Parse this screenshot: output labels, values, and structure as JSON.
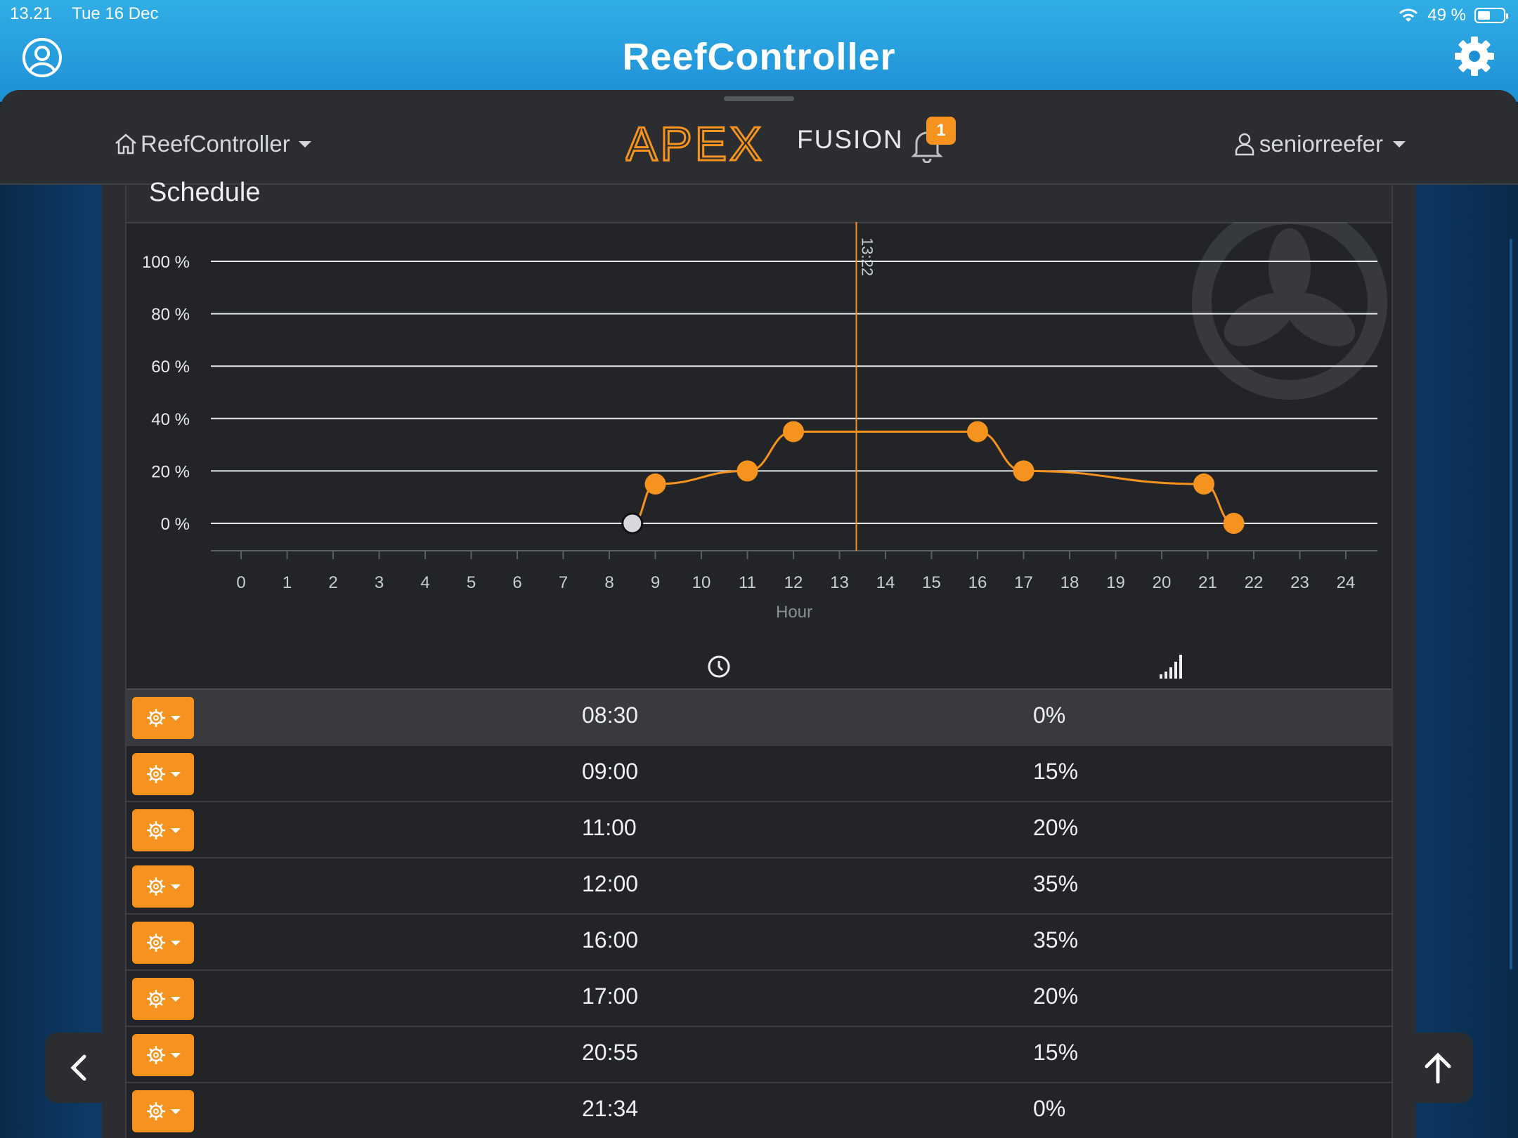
{
  "status_bar": {
    "time": "13.21",
    "date": "Tue 16 Dec",
    "battery": "49 %"
  },
  "app": {
    "title": "ReefController"
  },
  "navbar": {
    "controller": "ReefController",
    "brand_apex": "APEX",
    "brand_fusion": "FUSION",
    "notifications": "1",
    "user": "seniorreefer"
  },
  "card": {
    "title": "Schedule"
  },
  "colors": {
    "accent": "#f6921e",
    "background": "#222428",
    "panel": "#2b2d31",
    "ios_blue": "#1e8fd6"
  },
  "chart_data": {
    "type": "line",
    "x": [
      8.5,
      9.0,
      11.0,
      12.0,
      16.0,
      17.0,
      20.9167,
      21.5667
    ],
    "y": [
      0,
      15,
      20,
      35,
      35,
      20,
      15,
      0
    ],
    "xlabel": "Hour",
    "ylabel": "",
    "xlim": [
      0,
      24
    ],
    "ylim": [
      0,
      100
    ],
    "x_ticks": [
      "0",
      "1",
      "2",
      "3",
      "4",
      "5",
      "6",
      "7",
      "8",
      "9",
      "10",
      "11",
      "12",
      "13",
      "14",
      "15",
      "16",
      "17",
      "18",
      "19",
      "20",
      "21",
      "22",
      "23",
      "24"
    ],
    "y_ticks": [
      "0 %",
      "20 %",
      "40 %",
      "60 %",
      "80 %",
      "100 %"
    ],
    "y_tick_values": [
      0,
      20,
      40,
      60,
      80,
      100
    ],
    "current_time_label": "13:22",
    "current_time_value": 13.3667,
    "series_color": "#f6921e",
    "grid": true
  },
  "table": {
    "icons": {
      "time": "clock-icon",
      "level": "signal-icon",
      "action": "gear-icon"
    },
    "rows": [
      {
        "time": "08:30",
        "level": "0%"
      },
      {
        "time": "09:00",
        "level": "15%"
      },
      {
        "time": "11:00",
        "level": "20%"
      },
      {
        "time": "12:00",
        "level": "35%"
      },
      {
        "time": "16:00",
        "level": "35%"
      },
      {
        "time": "17:00",
        "level": "20%"
      },
      {
        "time": "20:55",
        "level": "15%"
      },
      {
        "time": "21:34",
        "level": "0%"
      }
    ]
  }
}
